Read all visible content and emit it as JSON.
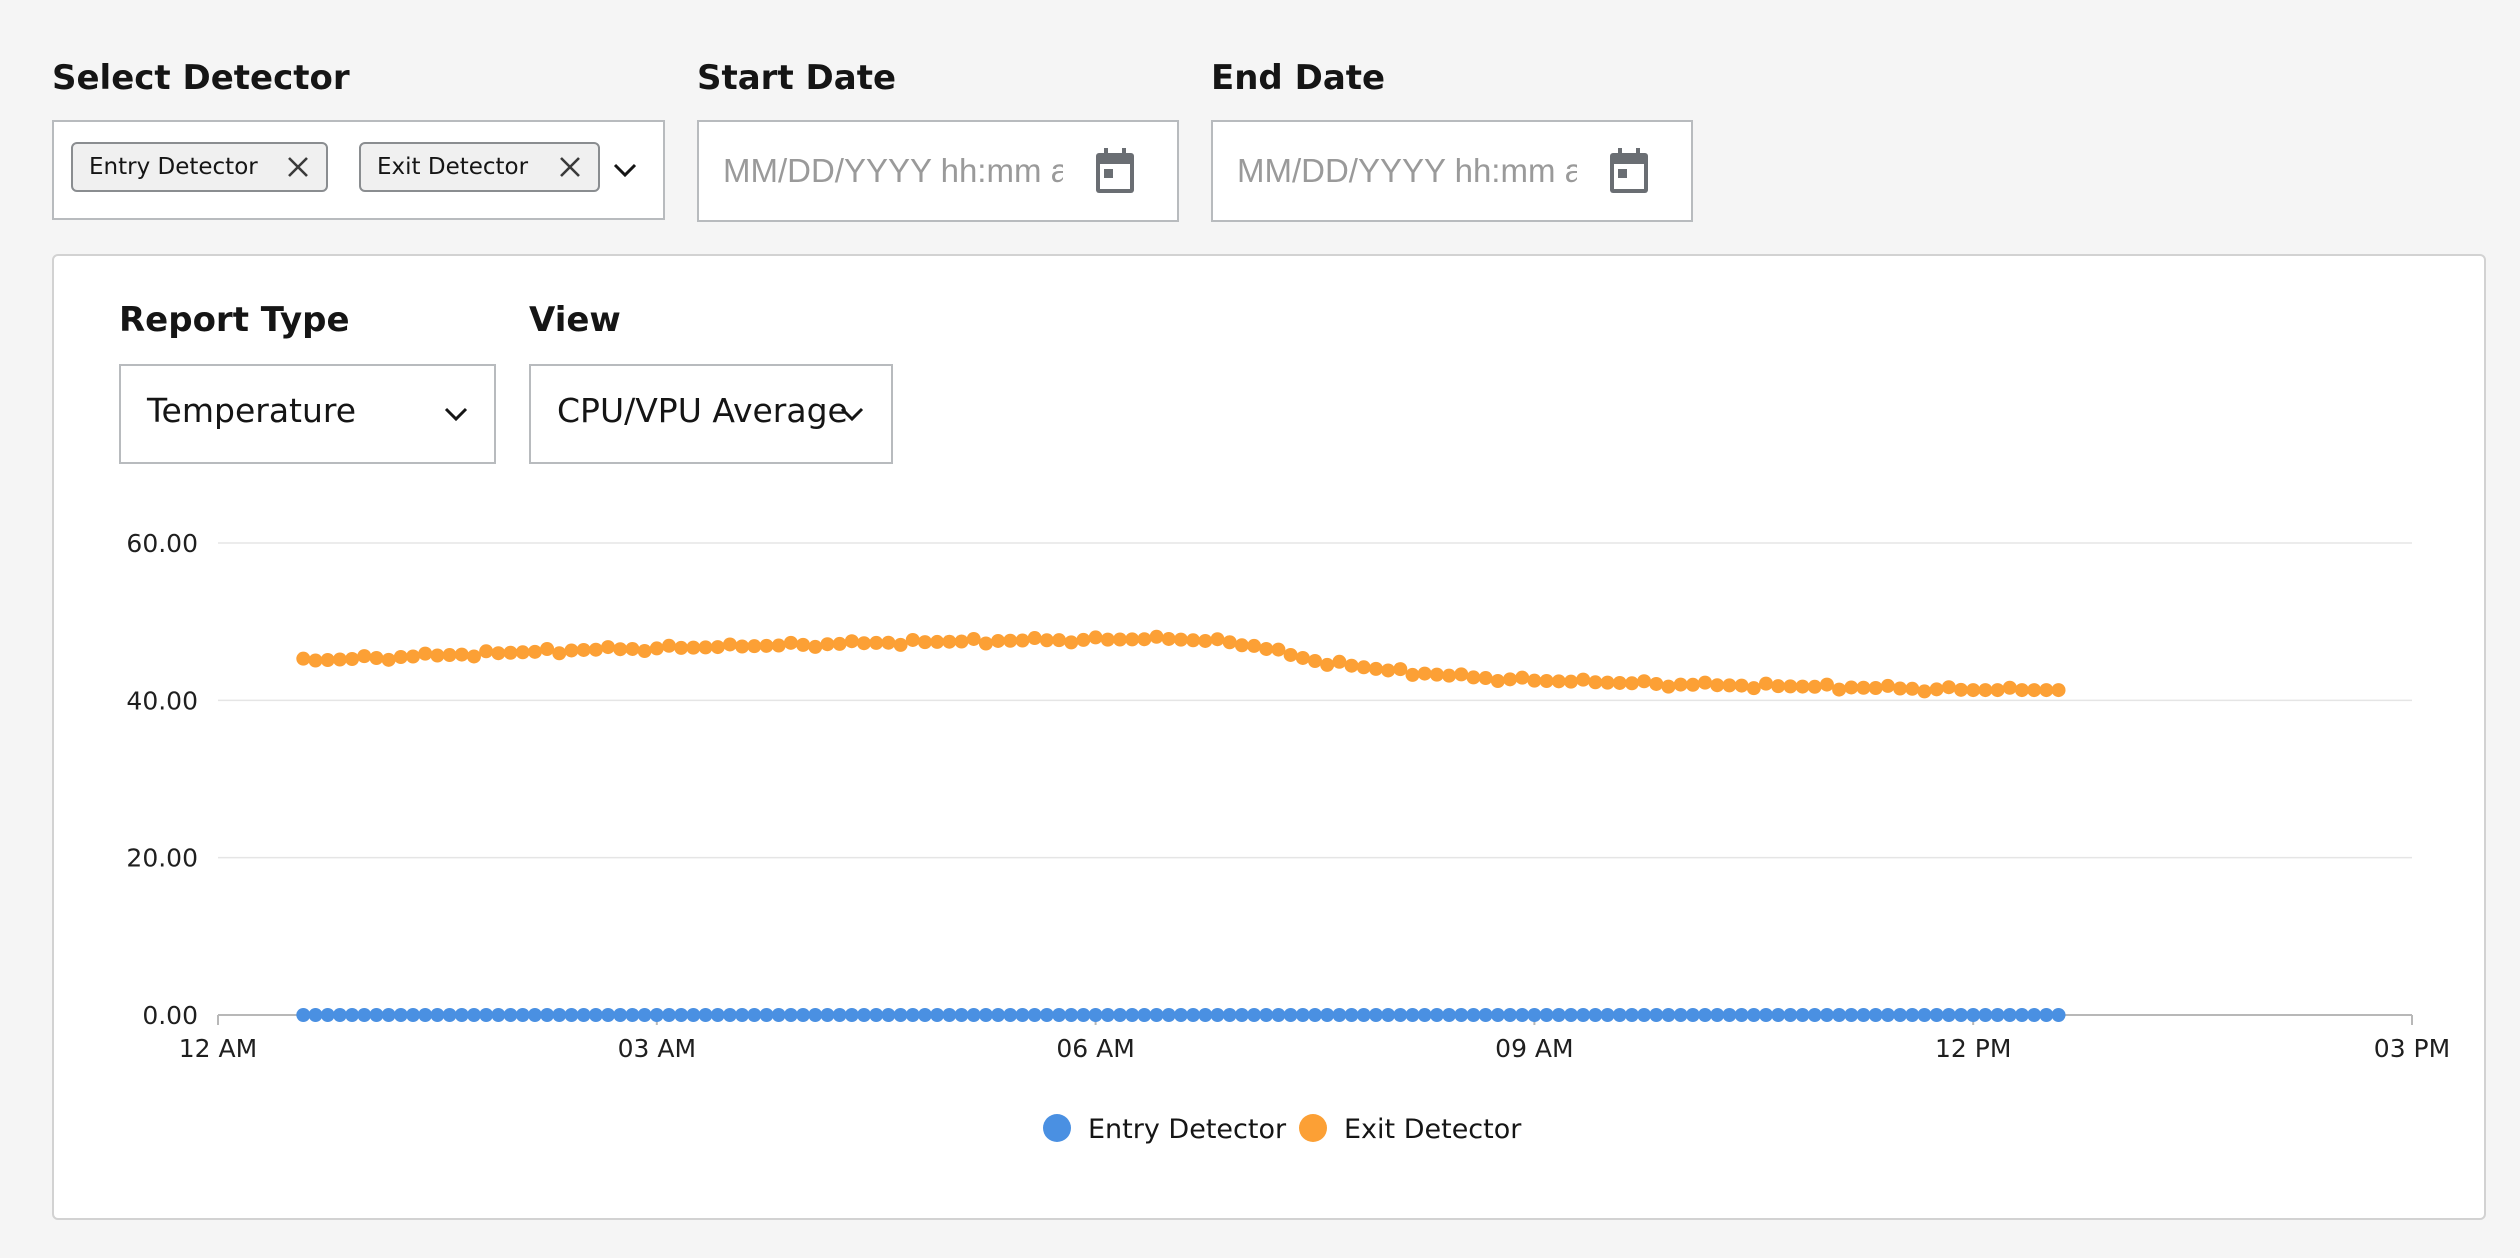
{
  "detector": {
    "label": "Select Detector",
    "chips": [
      "Entry Detector",
      "Exit Detector"
    ]
  },
  "start_date": {
    "label": "Start Date",
    "placeholder": "MM/DD/YYYY hh:mm a"
  },
  "end_date": {
    "label": "End Date",
    "placeholder": "MM/DD/YYYY hh:mm a"
  },
  "report_type": {
    "label": "Report Type",
    "value": "Temperature"
  },
  "view": {
    "label": "View",
    "value": "CPU/VPU Average"
  },
  "colors": {
    "entry": "#4a90e2",
    "exit": "#fca035",
    "grid": "#e5e5e5",
    "axis": "#b8b8b8"
  },
  "chart_data": {
    "type": "scatter",
    "x_ticks": [
      "12 AM",
      "03 AM",
      "06 AM",
      "09 AM",
      "12 PM",
      "03 PM"
    ],
    "y_ticks": [
      "0.00",
      "20.00",
      "40.00",
      "60.00"
    ],
    "ylim": [
      0,
      60
    ],
    "xlim": [
      "00:00",
      "15:00"
    ],
    "legend_position": "bottom-center",
    "grid": true,
    "series": [
      {
        "name": "Entry Detector",
        "color": "#4a90e2",
        "x_start": "00:35",
        "x_end": "12:35",
        "interval_minutes": 5,
        "values": "constant 0.00"
      },
      {
        "name": "Exit Detector",
        "color": "#fca035",
        "x_start": "00:35",
        "x_end": "12:35",
        "interval_minutes": 5,
        "keypoints": [
          {
            "x": "00:35",
            "y": 45.0
          },
          {
            "x": "01:30",
            "y": 45.7
          },
          {
            "x": "02:30",
            "y": 46.4
          },
          {
            "x": "03:30",
            "y": 46.8
          },
          {
            "x": "04:30",
            "y": 47.3
          },
          {
            "x": "05:30",
            "y": 47.6
          },
          {
            "x": "06:30",
            "y": 47.8
          },
          {
            "x": "07:00",
            "y": 47.3
          },
          {
            "x": "07:30",
            "y": 45.0
          },
          {
            "x": "08:00",
            "y": 43.8
          },
          {
            "x": "08:30",
            "y": 43.0
          },
          {
            "x": "09:00",
            "y": 42.5
          },
          {
            "x": "10:00",
            "y": 42.0
          },
          {
            "x": "11:00",
            "y": 41.7
          },
          {
            "x": "12:00",
            "y": 41.3
          },
          {
            "x": "12:35",
            "y": 41.3
          }
        ]
      }
    ]
  }
}
